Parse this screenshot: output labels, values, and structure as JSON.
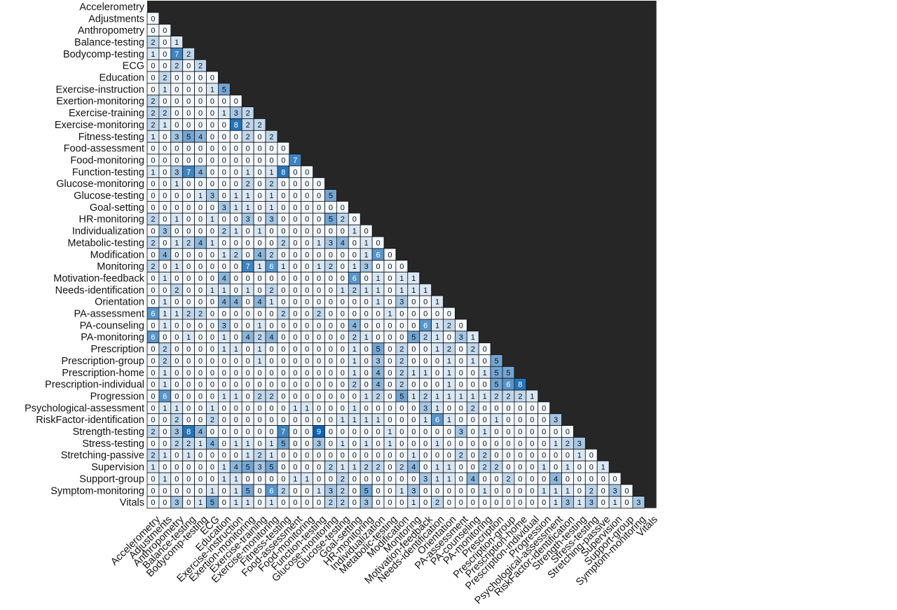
{
  "chart_data": {
    "type": "heatmap",
    "title": "",
    "xlabel": "",
    "ylabel": "",
    "labels": [
      "Accelerometry",
      "Adjustments",
      "Anthropometry",
      "Balance-testing",
      "Bodycomp-testing",
      "ECG",
      "Education",
      "Exercise-instruction",
      "Exertion-monitoring",
      "Exercise-training",
      "Exercise-monitoring",
      "Fitness-testing",
      "Food-assessment",
      "Food-monitoring",
      "Function-testing",
      "Glucose-monitoring",
      "Glucose-testing",
      "Goal-setting",
      "HR-monitoring",
      "Individualization",
      "Metabolic-testing",
      "Modification",
      "Monitoring",
      "Motivation-feedback",
      "Needs-identification",
      "Orientation",
      "PA-assessment",
      "PA-counseling",
      "PA-monitoring",
      "Prescription",
      "Prescription-group",
      "Prescription-home",
      "Prescription-individual",
      "Progression",
      "Psychological-assessment",
      "RiskFactor-identification",
      "Strength-testing",
      "Stress-testing",
      "Stretching-passive",
      "Supervision",
      "Support-group",
      "Symptom-monitoring",
      "Vitals"
    ],
    "lower_triangle": [
      [],
      [
        0
      ],
      [
        0,
        0
      ],
      [
        2,
        0,
        1
      ],
      [
        1,
        0,
        7,
        2
      ],
      [
        0,
        0,
        2,
        0,
        2
      ],
      [
        0,
        2,
        0,
        0,
        0,
        0
      ],
      [
        0,
        1,
        0,
        0,
        0,
        1,
        5
      ],
      [
        2,
        0,
        0,
        0,
        0,
        0,
        0,
        0
      ],
      [
        2,
        2,
        0,
        0,
        0,
        0,
        1,
        3,
        2
      ],
      [
        2,
        1,
        0,
        0,
        0,
        0,
        0,
        8,
        2,
        2
      ],
      [
        1,
        0,
        3,
        5,
        4,
        0,
        0,
        0,
        2,
        0,
        2
      ],
      [
        0,
        0,
        0,
        0,
        0,
        0,
        0,
        0,
        0,
        0,
        0,
        0
      ],
      [
        0,
        0,
        0,
        0,
        0,
        0,
        0,
        0,
        0,
        0,
        0,
        0,
        7
      ],
      [
        1,
        0,
        3,
        7,
        4,
        0,
        0,
        0,
        1,
        0,
        1,
        8,
        0,
        0
      ],
      [
        0,
        0,
        1,
        0,
        0,
        0,
        0,
        0,
        2,
        0,
        2,
        0,
        0,
        0,
        0
      ],
      [
        0,
        0,
        0,
        0,
        1,
        3,
        0,
        1,
        1,
        0,
        1,
        0,
        0,
        0,
        0,
        5
      ],
      [
        0,
        0,
        0,
        0,
        0,
        0,
        3,
        1,
        1,
        0,
        1,
        0,
        0,
        0,
        0,
        0,
        0
      ],
      [
        2,
        0,
        1,
        0,
        0,
        1,
        0,
        0,
        3,
        0,
        3,
        0,
        0,
        0,
        0,
        5,
        2,
        0
      ],
      [
        0,
        3,
        0,
        0,
        0,
        0,
        2,
        1,
        0,
        1,
        0,
        0,
        0,
        0,
        0,
        0,
        0,
        1,
        0
      ],
      [
        2,
        0,
        1,
        2,
        4,
        1,
        0,
        0,
        0,
        0,
        0,
        2,
        0,
        0,
        1,
        3,
        4,
        0,
        1,
        0
      ],
      [
        0,
        4,
        0,
        0,
        0,
        0,
        1,
        2,
        0,
        4,
        2,
        0,
        0,
        0,
        0,
        0,
        0,
        0,
        1,
        6,
        0
      ],
      [
        2,
        0,
        1,
        0,
        0,
        0,
        0,
        0,
        7,
        1,
        6,
        1,
        0,
        0,
        1,
        2,
        0,
        1,
        3,
        0,
        0,
        0
      ],
      [
        0,
        1,
        0,
        0,
        0,
        0,
        4,
        0,
        0,
        0,
        0,
        0,
        0,
        0,
        0,
        0,
        0,
        6,
        0,
        1,
        0,
        1,
        1
      ],
      [
        0,
        0,
        2,
        0,
        0,
        1,
        1,
        0,
        1,
        0,
        2,
        0,
        0,
        0,
        0,
        0,
        1,
        2,
        1,
        1,
        0,
        1,
        1,
        1
      ],
      [
        0,
        1,
        0,
        0,
        0,
        0,
        4,
        4,
        0,
        4,
        1,
        0,
        0,
        0,
        0,
        0,
        0,
        0,
        0,
        1,
        0,
        3,
        0,
        0,
        1
      ],
      [
        6,
        1,
        1,
        2,
        2,
        0,
        0,
        0,
        0,
        0,
        0,
        2,
        0,
        0,
        2,
        0,
        0,
        0,
        0,
        0,
        1,
        0,
        0,
        0,
        0,
        0
      ],
      [
        0,
        1,
        0,
        0,
        0,
        0,
        3,
        0,
        0,
        1,
        0,
        0,
        0,
        0,
        0,
        0,
        0,
        4,
        0,
        0,
        0,
        0,
        0,
        6,
        1,
        2,
        0
      ],
      [
        6,
        0,
        0,
        1,
        0,
        0,
        1,
        0,
        4,
        2,
        4,
        0,
        0,
        0,
        0,
        0,
        0,
        2,
        1,
        0,
        0,
        0,
        5,
        2,
        1,
        0,
        3,
        1
      ],
      [
        0,
        2,
        0,
        0,
        0,
        0,
        1,
        1,
        0,
        1,
        0,
        0,
        0,
        0,
        0,
        0,
        0,
        1,
        0,
        5,
        0,
        2,
        0,
        0,
        1,
        2,
        0,
        2,
        0
      ],
      [
        0,
        2,
        0,
        0,
        0,
        0,
        0,
        0,
        0,
        1,
        0,
        0,
        0,
        0,
        0,
        0,
        0,
        1,
        0,
        3,
        0,
        2,
        0,
        0,
        0,
        1,
        0,
        1,
        0,
        5
      ],
      [
        0,
        1,
        0,
        0,
        0,
        0,
        0,
        0,
        0,
        0,
        0,
        0,
        0,
        0,
        0,
        0,
        0,
        1,
        0,
        4,
        0,
        2,
        1,
        1,
        0,
        1,
        0,
        0,
        1,
        5,
        5
      ],
      [
        0,
        1,
        0,
        0,
        0,
        0,
        0,
        0,
        0,
        0,
        0,
        0,
        0,
        0,
        0,
        0,
        0,
        2,
        0,
        4,
        0,
        2,
        0,
        0,
        0,
        1,
        0,
        0,
        0,
        5,
        6,
        8
      ],
      [
        0,
        6,
        0,
        0,
        0,
        0,
        1,
        1,
        0,
        2,
        2,
        0,
        0,
        0,
        0,
        0,
        0,
        0,
        1,
        2,
        0,
        5,
        1,
        2,
        1,
        1,
        1,
        1,
        1,
        2,
        2,
        2,
        1
      ],
      [
        0,
        1,
        1,
        0,
        0,
        1,
        0,
        0,
        0,
        0,
        0,
        0,
        1,
        1,
        0,
        0,
        0,
        1,
        0,
        0,
        0,
        0,
        0,
        3,
        1,
        0,
        0,
        2,
        0,
        0,
        0,
        0,
        0,
        0
      ],
      [
        0,
        0,
        2,
        0,
        0,
        2,
        0,
        0,
        0,
        0,
        0,
        0,
        0,
        0,
        0,
        0,
        1,
        1,
        1,
        1,
        0,
        0,
        0,
        1,
        6,
        1,
        0,
        0,
        0,
        1,
        0,
        0,
        0,
        0,
        3
      ],
      [
        2,
        0,
        3,
        8,
        4,
        0,
        0,
        0,
        0,
        0,
        0,
        7,
        0,
        0,
        9,
        0,
        0,
        0,
        0,
        0,
        1,
        0,
        0,
        0,
        0,
        0,
        3,
        0,
        1,
        0,
        0,
        0,
        0,
        0,
        0,
        0
      ],
      [
        0,
        0,
        2,
        2,
        1,
        4,
        0,
        1,
        1,
        0,
        1,
        5,
        0,
        0,
        3,
        0,
        1,
        0,
        1,
        0,
        1,
        0,
        0,
        0,
        1,
        0,
        0,
        0,
        0,
        0,
        0,
        0,
        0,
        0,
        1,
        2,
        3
      ],
      [
        2,
        1,
        0,
        1,
        0,
        0,
        0,
        0,
        1,
        2,
        1,
        0,
        0,
        0,
        0,
        0,
        0,
        0,
        0,
        0,
        0,
        0,
        1,
        0,
        0,
        0,
        2,
        0,
        2,
        0,
        0,
        0,
        0,
        0,
        0,
        0,
        1,
        0
      ],
      [
        1,
        0,
        0,
        0,
        0,
        0,
        1,
        4,
        5,
        3,
        5,
        0,
        0,
        0,
        0,
        2,
        1,
        1,
        2,
        2,
        0,
        2,
        4,
        0,
        1,
        1,
        0,
        0,
        2,
        2,
        0,
        0,
        0,
        1,
        0,
        1,
        0,
        0,
        1
      ],
      [
        0,
        1,
        0,
        0,
        0,
        0,
        1,
        1,
        0,
        0,
        0,
        0,
        1,
        1,
        0,
        0,
        2,
        0,
        0,
        0,
        0,
        0,
        0,
        3,
        1,
        1,
        0,
        4,
        0,
        0,
        2,
        0,
        0,
        0,
        4,
        0,
        0,
        0,
        0,
        0
      ],
      [
        0,
        0,
        0,
        0,
        0,
        1,
        0,
        1,
        5,
        0,
        6,
        2,
        0,
        0,
        1,
        3,
        2,
        0,
        5,
        0,
        0,
        1,
        3,
        0,
        0,
        0,
        0,
        0,
        1,
        0,
        0,
        0,
        0,
        1,
        1,
        1,
        0,
        2,
        0,
        3,
        0
      ],
      [
        0,
        0,
        3,
        0,
        1,
        5,
        0,
        1,
        1,
        0,
        1,
        0,
        0,
        0,
        0,
        2,
        2,
        0,
        3,
        0,
        0,
        0,
        1,
        0,
        2,
        0,
        0,
        0,
        0,
        0,
        0,
        0,
        0,
        0,
        1,
        3,
        1,
        3,
        0,
        1,
        0,
        3
      ]
    ],
    "value_range": [
      0,
      9
    ],
    "grid": true,
    "legend": "none",
    "colors": {
      "background": "#262626",
      "cell_border": "#111111",
      "low": "#f3f8fe",
      "high": "#0a63b0",
      "text_dark": "#111111",
      "text_light": "#ffffff"
    }
  }
}
